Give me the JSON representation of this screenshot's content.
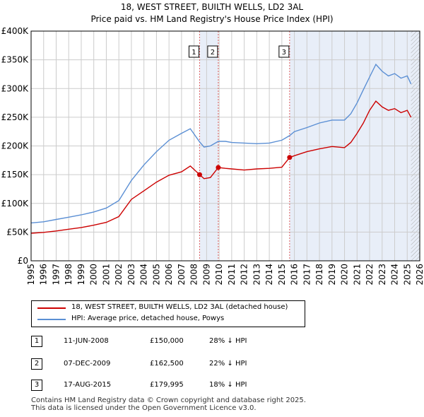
{
  "title_line1": "18, WEST STREET, BUILTH WELLS, LD2 3AL",
  "title_line2": "Price paid vs. HM Land Registry's House Price Index (HPI)",
  "colors": {
    "property": "#cc0000",
    "hpi": "#5b8fd4",
    "shade": "#e8eef8",
    "grid": "#cccccc",
    "marker_line": "#e06060"
  },
  "chart_data": {
    "type": "line",
    "title": "18, WEST STREET, BUILTH WELLS, LD2 3AL — Price paid vs. HM Land Registry's House Price Index (HPI)",
    "xlim": [
      1995,
      2026
    ],
    "ylim": [
      0,
      400000
    ],
    "y_ticks": [
      0,
      50000,
      100000,
      150000,
      200000,
      250000,
      300000,
      350000,
      400000
    ],
    "y_tick_labels": [
      "£0",
      "£50K",
      "£100K",
      "£150K",
      "£200K",
      "£250K",
      "£300K",
      "£350K",
      "£400K"
    ],
    "x_ticks": [
      "1995",
      "1996",
      "1997",
      "1998",
      "1999",
      "2000",
      "2001",
      "2002",
      "2003",
      "2004",
      "2005",
      "2006",
      "2007",
      "2008",
      "2009",
      "2010",
      "2011",
      "2012",
      "2013",
      "2014",
      "2015",
      "2016",
      "2017",
      "2018",
      "2019",
      "2020",
      "2021",
      "2022",
      "2023",
      "2024",
      "2025",
      "2026"
    ],
    "grid": true,
    "shaded_ranges": [
      [
        2008.44,
        2009.93
      ],
      [
        2015.62,
        2026
      ]
    ],
    "hatched_range": [
      2025.3,
      2026
    ],
    "series": [
      {
        "name": "18, WEST STREET, BUILTH WELLS, LD2 3AL (detached house)",
        "x": [
          1995,
          1996,
          1997,
          1998,
          1999,
          2000,
          2001,
          2002,
          2003,
          2004,
          2005,
          2006,
          2007,
          2007.7,
          2008.44,
          2008.8,
          2009.3,
          2009.93,
          2010.5,
          2011,
          2012,
          2013,
          2014,
          2015,
          2015.62,
          2016,
          2017,
          2018,
          2019,
          2020,
          2020.5,
          2021,
          2021.5,
          2022,
          2022.5,
          2023,
          2023.5,
          2024,
          2024.5,
          2025,
          2025.3
        ],
        "values": [
          48000,
          49500,
          52000,
          55000,
          58000,
          62000,
          67000,
          77000,
          107000,
          122000,
          137000,
          149000,
          155000,
          165000,
          150000,
          143000,
          145000,
          162500,
          161000,
          160000,
          158000,
          160000,
          161000,
          163000,
          179995,
          183000,
          190000,
          195000,
          199000,
          197000,
          206000,
          222000,
          240000,
          262000,
          278000,
          268000,
          262000,
          265000,
          258000,
          262000,
          250000
        ]
      },
      {
        "name": "HPI: Average price, detached house, Powys",
        "x": [
          1995,
          1996,
          1997,
          1998,
          1999,
          2000,
          2001,
          2002,
          2003,
          2004,
          2005,
          2006,
          2007,
          2007.7,
          2008.44,
          2008.8,
          2009.3,
          2009.93,
          2010.5,
          2011,
          2012,
          2013,
          2014,
          2015,
          2015.62,
          2016,
          2017,
          2018,
          2019,
          2020,
          2020.5,
          2021,
          2021.5,
          2022,
          2022.5,
          2023,
          2023.5,
          2024,
          2024.5,
          2025,
          2025.3
        ],
        "values": [
          66000,
          68000,
          72000,
          76000,
          80000,
          85000,
          92000,
          105000,
          140000,
          167000,
          190000,
          210000,
          222000,
          230000,
          207000,
          198000,
          200000,
          208000,
          208000,
          206000,
          205000,
          204000,
          205000,
          210000,
          218000,
          225000,
          232000,
          240000,
          245000,
          245000,
          256000,
          275000,
          298000,
          320000,
          342000,
          330000,
          322000,
          326000,
          318000,
          322000,
          308000
        ]
      }
    ],
    "markers": [
      {
        "label": "1",
        "x": 2008.44,
        "y": 150000
      },
      {
        "label": "2",
        "x": 2009.93,
        "y": 162500
      },
      {
        "label": "3",
        "x": 2015.62,
        "y": 179995
      }
    ]
  },
  "legend": {
    "property_label": "18, WEST STREET, BUILTH WELLS, LD2 3AL (detached house)",
    "hpi_label": "HPI: Average price, detached house, Powys"
  },
  "sales": [
    {
      "num": "1",
      "date": "11-JUN-2008",
      "price": "£150,000",
      "hpi": "28% ↓ HPI"
    },
    {
      "num": "2",
      "date": "07-DEC-2009",
      "price": "£162,500",
      "hpi": "22% ↓ HPI"
    },
    {
      "num": "3",
      "date": "17-AUG-2015",
      "price": "£179,995",
      "hpi": "18% ↓ HPI"
    }
  ],
  "footer_line1": "Contains HM Land Registry data © Crown copyright and database right 2025.",
  "footer_line2": "This data is licensed under the Open Government Licence v3.0."
}
